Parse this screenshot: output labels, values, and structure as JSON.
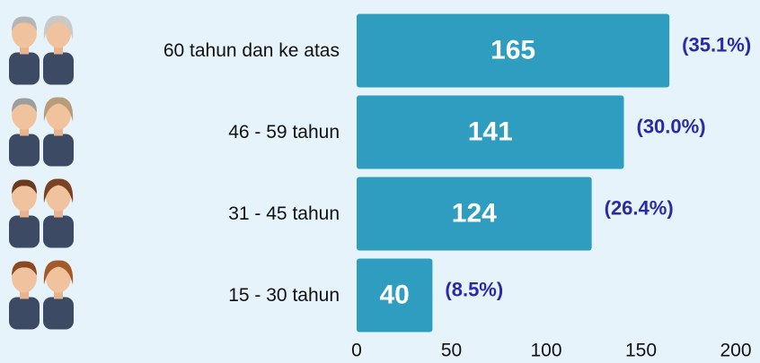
{
  "chart_data": {
    "type": "bar",
    "orientation": "horizontal",
    "categories": [
      "60 tahun dan ke atas",
      "46 - 59 tahun",
      "31 - 45 tahun",
      "15 - 30 tahun"
    ],
    "values": [
      165,
      141,
      124,
      40
    ],
    "shares": [
      35.1,
      30.0,
      26.4,
      8.5
    ],
    "share_labels": [
      "(35.1%)",
      "(30.0%)",
      "(26.4%)",
      "(8.5%)"
    ],
    "color": "#2e9dbf",
    "xlim": [
      0,
      200
    ],
    "xticks": [
      0,
      50,
      100,
      150,
      200
    ],
    "grid": false
  }
}
